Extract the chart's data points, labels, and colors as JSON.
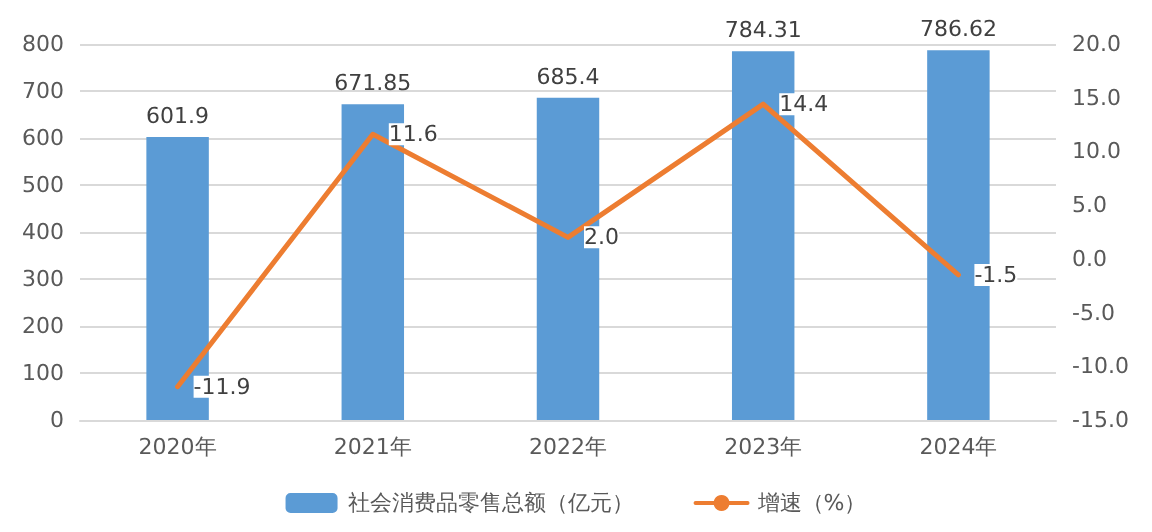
{
  "chart_data": {
    "type": "bar",
    "categories": [
      "2020年",
      "2021年",
      "2022年",
      "2023年",
      "2024年"
    ],
    "series": [
      {
        "name": "社会消费品零售总额（亿元）",
        "color": "#5b9bd5",
        "values": [
          601.9,
          671.85,
          685.4,
          784.31,
          786.62
        ],
        "value_labels": [
          "601.9",
          "671.85",
          "685.4",
          "784.31",
          "786.62"
        ]
      },
      {
        "name": "增速（%）",
        "type": "line",
        "axis": "y2",
        "color": "#ed7d31",
        "values": [
          -11.9,
          11.6,
          2.0,
          14.4,
          -1.5
        ],
        "value_labels": [
          "-11.9",
          "11.6",
          "2.0",
          "14.4",
          "-1.5"
        ]
      }
    ],
    "ylim": [
      0,
      800
    ],
    "yticks": [
      0,
      100,
      200,
      300,
      400,
      500,
      600,
      700,
      800
    ],
    "y2lim": [
      -15,
      20
    ],
    "y2ticks": [
      {
        "value": -15,
        "label": "-15.0"
      },
      {
        "value": -10,
        "label": "-10.0"
      },
      {
        "value": -5,
        "label": "-5.0"
      },
      {
        "value": 0,
        "label": "0.0"
      },
      {
        "value": 5,
        "label": "5.0"
      },
      {
        "value": 10,
        "label": "10.0"
      },
      {
        "value": 15,
        "label": "15.0"
      },
      {
        "value": 20,
        "label": "20.0"
      }
    ],
    "grid": "y",
    "legend": "bottom",
    "marker": "none",
    "line_style": "solid"
  }
}
